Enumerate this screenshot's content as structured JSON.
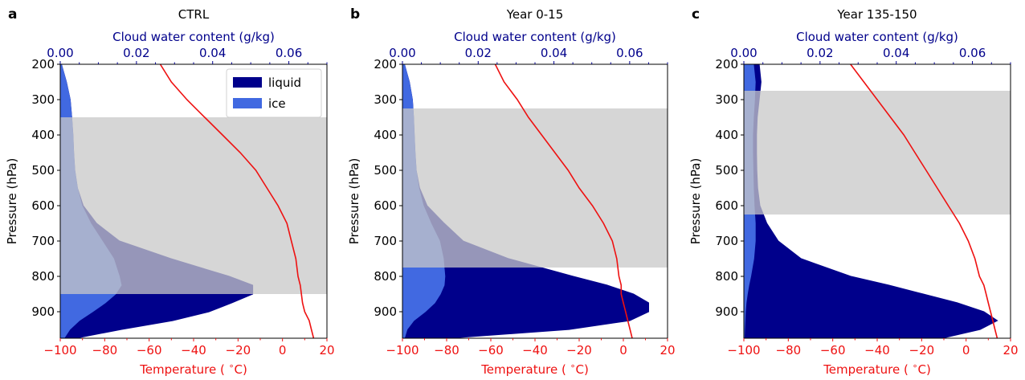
{
  "colors": {
    "liquid": "#00008b",
    "ice": "#4169e1",
    "temperature": "#ee1111",
    "band": "#c8c8c8",
    "cloud_axis": "#00008b",
    "temp_axis": "#ee1111"
  },
  "legend": {
    "liquid": "liquid",
    "ice": "ice"
  },
  "chart_data": [
    {
      "type": "area",
      "panel_label": "a",
      "title": "CTRL",
      "ylabel": "Pressure (hPa)",
      "xlabel_bottom": "Temperature ($^\\circ$C)",
      "xlabel_top": "Cloud water content (g/kg)",
      "ylim": [
        975,
        200
      ],
      "temp_lim": [
        -100,
        20
      ],
      "cloud_lim": [
        0,
        0.07
      ],
      "yticks": [
        "200",
        "300",
        "400",
        "500",
        "600",
        "700",
        "800",
        "900"
      ],
      "temp_ticks": [
        "−100",
        "−80",
        "−60",
        "−40",
        "−20",
        "0",
        "20"
      ],
      "cloud_ticks": [
        "0.00",
        "0.02",
        "0.04",
        "0.06"
      ],
      "band": [
        350,
        850
      ],
      "pressure": [
        200,
        250,
        300,
        350,
        400,
        450,
        500,
        550,
        600,
        650,
        700,
        750,
        800,
        825,
        850,
        875,
        900,
        925,
        950,
        975
      ],
      "ice": [
        0.0003,
        0.0016,
        0.0026,
        0.003,
        0.0033,
        0.0035,
        0.0038,
        0.0045,
        0.0057,
        0.008,
        0.011,
        0.014,
        0.0155,
        0.016,
        0.0145,
        0.0118,
        0.0085,
        0.005,
        0.0025,
        0.001
      ],
      "liquid": [
        0.0003,
        0.0016,
        0.0026,
        0.003,
        0.0033,
        0.0035,
        0.0038,
        0.0045,
        0.006,
        0.0095,
        0.0155,
        0.029,
        0.0443,
        0.0505,
        0.0505,
        0.045,
        0.039,
        0.0295,
        0.016,
        0.004
      ],
      "temperature": [
        -55,
        -50,
        -43,
        -35,
        -27,
        -19,
        -12,
        -7,
        -2,
        2,
        4,
        6,
        7,
        8,
        8.5,
        9,
        10,
        12,
        13,
        14
      ]
    },
    {
      "type": "area",
      "panel_label": "b",
      "title": "Year 0-15",
      "ylabel": "Pressure (hPa)",
      "xlabel_bottom": "Temperature ($^\\circ$C)",
      "xlabel_top": "Cloud water content (g/kg)",
      "ylim": [
        975,
        200
      ],
      "temp_lim": [
        -100,
        20
      ],
      "cloud_lim": [
        0,
        0.07
      ],
      "yticks": [
        "200",
        "300",
        "400",
        "500",
        "600",
        "700",
        "800",
        "900"
      ],
      "temp_ticks": [
        "−100",
        "−80",
        "−60",
        "−40",
        "−20",
        "0",
        "20"
      ],
      "cloud_ticks": [
        "0.00",
        "0.02",
        "0.04",
        "0.06"
      ],
      "band": [
        325,
        775
      ],
      "pressure": [
        200,
        250,
        300,
        350,
        400,
        450,
        500,
        550,
        600,
        650,
        700,
        750,
        800,
        825,
        850,
        875,
        900,
        925,
        950,
        975
      ],
      "ice": [
        0.0005,
        0.0018,
        0.0026,
        0.0029,
        0.0031,
        0.0033,
        0.0036,
        0.0043,
        0.0055,
        0.0075,
        0.0098,
        0.0108,
        0.0112,
        0.011,
        0.01,
        0.0085,
        0.006,
        0.003,
        0.0012,
        0.0005
      ],
      "liquid": [
        0.0005,
        0.0018,
        0.0026,
        0.0029,
        0.0031,
        0.0033,
        0.0036,
        0.0045,
        0.0065,
        0.011,
        0.016,
        0.028,
        0.045,
        0.054,
        0.061,
        0.065,
        0.065,
        0.06,
        0.044,
        0.012
      ],
      "temperature": [
        -58,
        -54,
        -48,
        -43,
        -37,
        -31,
        -25,
        -20,
        -14,
        -9,
        -5,
        -3,
        -2,
        -1,
        -1,
        0,
        1,
        2,
        3,
        4
      ]
    },
    {
      "type": "area",
      "panel_label": "c",
      "title": "Year 135-150",
      "ylabel": "Pressure (hPa)",
      "xlabel_bottom": "Temperature ($^\\circ$C)",
      "xlabel_top": "Cloud water content (g/kg)",
      "ylim": [
        975,
        200
      ],
      "temp_lim": [
        -100,
        20
      ],
      "cloud_lim": [
        0,
        0.07
      ],
      "yticks": [
        "200",
        "300",
        "400",
        "500",
        "600",
        "700",
        "800",
        "900"
      ],
      "temp_ticks": [
        "−100",
        "−80",
        "−60",
        "−40",
        "−20",
        "0",
        "20"
      ],
      "cloud_ticks": [
        "0.00",
        "0.02",
        "0.04",
        "0.06"
      ],
      "band": [
        275,
        625
      ],
      "pressure": [
        200,
        250,
        300,
        350,
        400,
        450,
        500,
        550,
        600,
        650,
        700,
        750,
        800,
        825,
        850,
        875,
        900,
        925,
        950,
        975
      ],
      "ice": [
        0.0025,
        0.003,
        0.0028,
        0.0025,
        0.0023,
        0.0023,
        0.0024,
        0.0025,
        0.0027,
        0.003,
        0.003,
        0.0026,
        0.0018,
        0.0013,
        0.0009,
        0.0006,
        0.0004,
        0.0003,
        0.0002,
        0.0001
      ],
      "liquid": [
        0.004,
        0.0045,
        0.004,
        0.0035,
        0.0033,
        0.0033,
        0.0034,
        0.0036,
        0.0042,
        0.006,
        0.009,
        0.015,
        0.028,
        0.038,
        0.047,
        0.056,
        0.063,
        0.0665,
        0.062,
        0.052
      ],
      "temperature": [
        -52,
        -46,
        -40,
        -34,
        -28,
        -23,
        -18,
        -13,
        -8,
        -3,
        1,
        4,
        6,
        8,
        9,
        10,
        11,
        12,
        13,
        14
      ]
    }
  ]
}
